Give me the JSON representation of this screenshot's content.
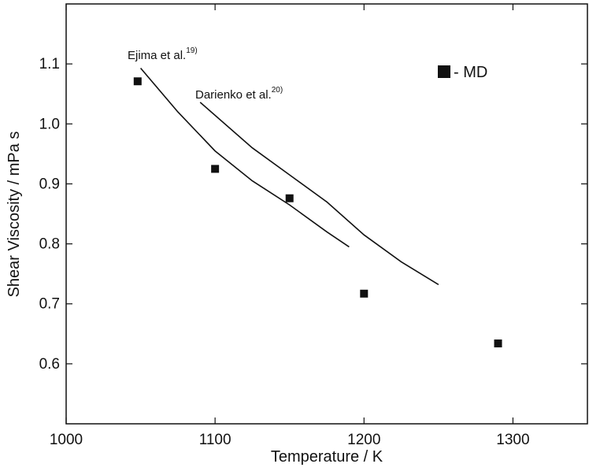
{
  "chart_data": {
    "type": "scatter",
    "x_label": "Temperature / K",
    "y_label": "Shear Viscosity / mPa s",
    "xlim": [
      1000,
      1350
    ],
    "ylim": [
      0.5,
      1.2
    ],
    "xticks": [
      1000,
      1100,
      1200,
      1300
    ],
    "yticks": [
      0.6,
      0.7,
      0.8,
      0.9,
      {
        "value": 1,
        "label": "1.0"
      },
      1.1
    ],
    "series": [
      {
        "name": "MD",
        "type": "scatter",
        "color": "#111111",
        "x": [
          1048,
          1100,
          1150,
          1200,
          1290
        ],
        "values": [
          1.071,
          0.925,
          0.876,
          0.717,
          0.634
        ]
      },
      {
        "name": "Ejima et al.",
        "superscript": "19)",
        "type": "line",
        "color": "#111111",
        "x": [
          1050,
          1075,
          1100,
          1125,
          1150,
          1175,
          1190
        ],
        "values": [
          1.093,
          1.02,
          0.955,
          0.905,
          0.865,
          0.82,
          0.795
        ]
      },
      {
        "name": "Darienko et al.",
        "superscript": "20)",
        "type": "line",
        "color": "#111111",
        "x": [
          1090,
          1125,
          1150,
          1175,
          1200,
          1225,
          1250
        ],
        "values": [
          1.036,
          0.96,
          0.915,
          0.87,
          0.815,
          0.77,
          0.732
        ]
      }
    ]
  }
}
